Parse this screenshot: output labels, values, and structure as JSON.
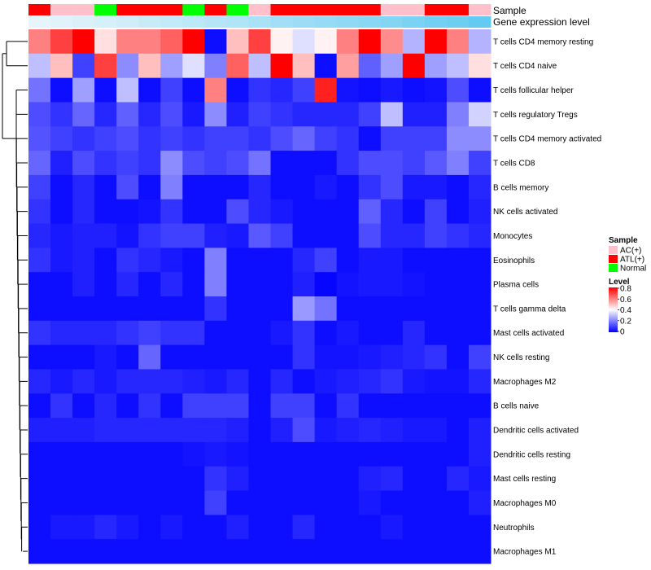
{
  "chart_data": {
    "type": "heatmap",
    "annotation_labels": {
      "sample": "Sample",
      "gene": "Gene expression level"
    },
    "sample_groups": [
      "ATL(+)",
      "AC(+)",
      "AC(+)",
      "Normal",
      "ATL(+)",
      "ATL(+)",
      "ATL(+)",
      "Normal",
      "ATL(+)",
      "Normal",
      "AC(+)",
      "ATL(+)",
      "ATL(+)",
      "ATL(+)",
      "ATL(+)",
      "ATL(+)",
      "AC(+)",
      "AC(+)",
      "ATL(+)",
      "ATL(+)",
      "AC(+)"
    ],
    "gene_expression": [
      0.02,
      0.06,
      0.1,
      0.14,
      0.18,
      0.23,
      0.27,
      0.31,
      0.36,
      0.4,
      0.45,
      0.5,
      0.54,
      0.58,
      0.63,
      0.67,
      0.72,
      0.77,
      0.82,
      0.88,
      0.94
    ],
    "rows": [
      "T cells CD4 memory resting",
      "T cells CD4 naive",
      "T cells follicular helper",
      "T cells regulatory  Tregs",
      "T cells CD4 memory activated",
      "T cells CD8",
      "B cells memory",
      "NK cells activated",
      "Monocytes",
      "Eosinophils",
      "Plasma cells",
      "T cells gamma delta",
      "Mast cells activated",
      "NK cells resting",
      "Macrophages M2",
      "B cells naive",
      "Dendritic cells activated",
      "Dendritic cells resting",
      "Mast cells resting",
      "Macrophages M0",
      "Neutrophils",
      "Macrophages M1"
    ],
    "values": [
      [
        0.6,
        0.7,
        0.8,
        0.45,
        0.6,
        0.6,
        0.65,
        0.8,
        0.02,
        0.5,
        0.7,
        0.42,
        0.35,
        0.42,
        0.6,
        0.8,
        0.58,
        0.28,
        0.8,
        0.6,
        0.28
      ],
      [
        0.3,
        0.5,
        0.1,
        0.7,
        0.22,
        0.5,
        0.25,
        0.35,
        0.2,
        0.65,
        0.3,
        0.8,
        0.5,
        0.02,
        0.55,
        0.15,
        0.25,
        0.8,
        0.25,
        0.3,
        0.45
      ],
      [
        0.18,
        0.02,
        0.25,
        0.02,
        0.3,
        0.02,
        0.1,
        0.02,
        0.6,
        0.02,
        0.08,
        0.06,
        0.1,
        0.75,
        0.03,
        0.02,
        0.04,
        0.02,
        0.03,
        0.12,
        0.02
      ],
      [
        0.12,
        0.08,
        0.16,
        0.06,
        0.15,
        0.06,
        0.12,
        0.04,
        0.22,
        0.05,
        0.1,
        0.08,
        0.06,
        0.06,
        0.06,
        0.1,
        0.3,
        0.05,
        0.05,
        0.2,
        0.33
      ],
      [
        0.13,
        0.1,
        0.08,
        0.1,
        0.12,
        0.08,
        0.1,
        0.08,
        0.1,
        0.1,
        0.08,
        0.12,
        0.16,
        0.1,
        0.08,
        0.02,
        0.1,
        0.1,
        0.1,
        0.22,
        0.22
      ],
      [
        0.16,
        0.05,
        0.12,
        0.08,
        0.1,
        0.08,
        0.22,
        0.12,
        0.1,
        0.12,
        0.18,
        0.02,
        0.02,
        0.02,
        0.08,
        0.12,
        0.12,
        0.1,
        0.14,
        0.2,
        0.1
      ],
      [
        0.1,
        0.02,
        0.06,
        0.02,
        0.12,
        0.02,
        0.2,
        0.02,
        0.02,
        0.02,
        0.06,
        0.02,
        0.02,
        0.04,
        0.02,
        0.08,
        0.12,
        0.04,
        0.04,
        0.02,
        0.06
      ],
      [
        0.08,
        0.02,
        0.06,
        0.02,
        0.02,
        0.03,
        0.08,
        0.02,
        0.02,
        0.12,
        0.06,
        0.04,
        0.02,
        0.02,
        0.02,
        0.15,
        0.06,
        0.02,
        0.1,
        0.02,
        0.05
      ],
      [
        0.06,
        0.04,
        0.05,
        0.05,
        0.03,
        0.08,
        0.1,
        0.1,
        0.05,
        0.04,
        0.14,
        0.1,
        0.02,
        0.02,
        0.02,
        0.12,
        0.06,
        0.06,
        0.1,
        0.08,
        0.06
      ],
      [
        0.08,
        0.04,
        0.05,
        0.02,
        0.08,
        0.06,
        0.04,
        0.02,
        0.2,
        0.02,
        0.02,
        0.02,
        0.06,
        0.1,
        0.02,
        0.04,
        0.04,
        0.02,
        0.02,
        0.02,
        0.02
      ],
      [
        0.02,
        0.02,
        0.05,
        0.02,
        0.06,
        0.02,
        0.06,
        0.02,
        0.2,
        0.02,
        0.02,
        0.02,
        0.05,
        0.01,
        0.03,
        0.04,
        0.04,
        0.03,
        0.02,
        0.02,
        0.02
      ],
      [
        0.02,
        0.02,
        0.02,
        0.02,
        0.02,
        0.02,
        0.02,
        0.02,
        0.08,
        0.02,
        0.02,
        0.02,
        0.24,
        0.18,
        0.02,
        0.02,
        0.02,
        0.02,
        0.02,
        0.02,
        0.02
      ],
      [
        0.08,
        0.06,
        0.06,
        0.06,
        0.08,
        0.1,
        0.08,
        0.08,
        0.02,
        0.02,
        0.02,
        0.04,
        0.08,
        0.02,
        0.04,
        0.02,
        0.02,
        0.06,
        0.02,
        0.02,
        0.02
      ],
      [
        0.02,
        0.02,
        0.02,
        0.04,
        0.02,
        0.16,
        0.02,
        0.02,
        0.02,
        0.02,
        0.02,
        0.02,
        0.08,
        0.03,
        0.03,
        0.04,
        0.05,
        0.06,
        0.08,
        0.02,
        0.1
      ],
      [
        0.06,
        0.04,
        0.06,
        0.04,
        0.06,
        0.06,
        0.06,
        0.05,
        0.04,
        0.06,
        0.02,
        0.06,
        0.02,
        0.04,
        0.05,
        0.06,
        0.08,
        0.04,
        0.03,
        0.03,
        0.06
      ],
      [
        0.02,
        0.08,
        0.02,
        0.06,
        0.02,
        0.08,
        0.02,
        0.1,
        0.1,
        0.1,
        0.02,
        0.1,
        0.1,
        0.02,
        0.08,
        0.02,
        0.02,
        0.02,
        0.02,
        0.02,
        0.02
      ],
      [
        0.05,
        0.05,
        0.05,
        0.06,
        0.06,
        0.06,
        0.06,
        0.06,
        0.06,
        0.05,
        0.02,
        0.05,
        0.12,
        0.04,
        0.05,
        0.06,
        0.05,
        0.04,
        0.04,
        0.02,
        0.05
      ],
      [
        0.02,
        0.02,
        0.02,
        0.02,
        0.02,
        0.02,
        0.02,
        0.03,
        0.04,
        0.03,
        0.02,
        0.02,
        0.02,
        0.02,
        0.02,
        0.02,
        0.02,
        0.02,
        0.02,
        0.02,
        0.05
      ],
      [
        0.02,
        0.02,
        0.02,
        0.02,
        0.02,
        0.02,
        0.02,
        0.02,
        0.08,
        0.05,
        0.02,
        0.02,
        0.02,
        0.02,
        0.02,
        0.05,
        0.06,
        0.02,
        0.02,
        0.06,
        0.04
      ],
      [
        0.02,
        0.02,
        0.02,
        0.02,
        0.02,
        0.02,
        0.02,
        0.02,
        0.1,
        0.02,
        0.02,
        0.02,
        0.02,
        0.02,
        0.02,
        0.04,
        0.02,
        0.02,
        0.02,
        0.02,
        0.05
      ],
      [
        0.02,
        0.04,
        0.04,
        0.06,
        0.04,
        0.02,
        0.04,
        0.02,
        0.02,
        0.05,
        0.02,
        0.02,
        0.06,
        0.02,
        0.02,
        0.02,
        0.04,
        0.02,
        0.02,
        0.02,
        0.02
      ],
      [
        0.02,
        0.02,
        0.02,
        0.02,
        0.02,
        0.02,
        0.02,
        0.02,
        0.02,
        0.02,
        0.02,
        0.02,
        0.02,
        0.02,
        0.02,
        0.02,
        0.02,
        0.02,
        0.02,
        0.02,
        0.02
      ]
    ],
    "scale": {
      "min": 0,
      "max": 0.8,
      "low": "#0000ff",
      "mid": "#ffffff",
      "high": "#ff0000"
    },
    "legend": {
      "sample_title": "Sample",
      "sample_entries": [
        {
          "label": "AC(+)",
          "color": "#ffc0cb"
        },
        {
          "label": "ATL(+)",
          "color": "#ff0000"
        },
        {
          "label": "Normal",
          "color": "#00ff00"
        }
      ],
      "level_title": "Level",
      "level_ticks": [
        "0.8",
        "0.6",
        "0.4",
        "0.2",
        "0"
      ],
      "position": "right"
    },
    "gene_scale": {
      "low": "#e8f6fb",
      "high": "#5bc8f0"
    }
  }
}
